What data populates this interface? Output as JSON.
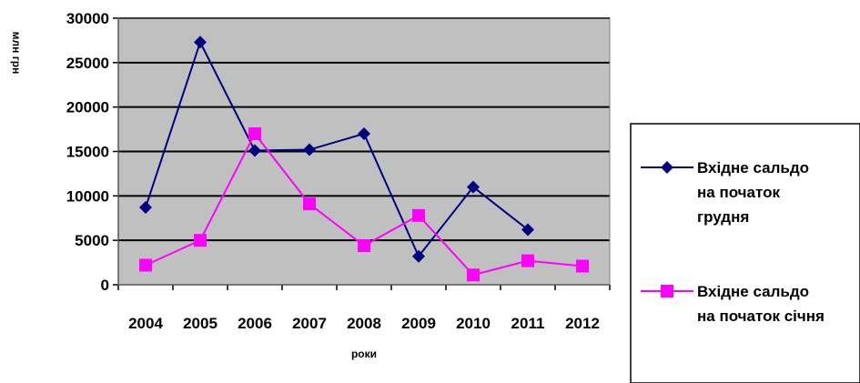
{
  "chart_data": {
    "type": "line",
    "ylabel": "млн грн",
    "xlabel": "роки",
    "categories": [
      "2004",
      "2005",
      "2006",
      "2007",
      "2008",
      "2009",
      "2010",
      "2011",
      "2012"
    ],
    "ylim": [
      0,
      30000
    ],
    "yticks": [
      0,
      5000,
      10000,
      15000,
      20000,
      25000,
      30000
    ],
    "grid": true,
    "legend_position": "right",
    "plot_background": "#c0c0c0",
    "series": [
      {
        "name": "Вхідне сальдо на початок грудня",
        "legend_lines": [
          "Вхідне сальдо",
          "на початок",
          "грудня"
        ],
        "color": "#000080",
        "marker": "diamond",
        "values": [
          8700,
          27300,
          15100,
          15200,
          17000,
          3200,
          11000,
          6200,
          null
        ]
      },
      {
        "name": "Вхідне сальдо на початок січня",
        "legend_lines": [
          "Вхідне сальдо",
          "на початок січня"
        ],
        "color": "#ff00ff",
        "marker": "square",
        "values": [
          2200,
          5000,
          17000,
          9100,
          4400,
          7800,
          1100,
          2700,
          2100
        ]
      }
    ]
  }
}
